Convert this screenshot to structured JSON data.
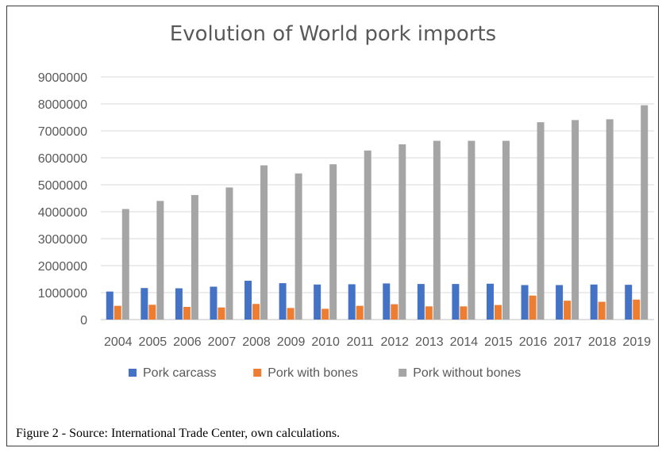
{
  "chart_data": {
    "type": "bar",
    "title": "Evolution of World pork imports",
    "xlabel": "",
    "ylabel": "",
    "ylim": [
      0,
      9000000
    ],
    "yticks": [
      0,
      1000000,
      2000000,
      3000000,
      4000000,
      5000000,
      6000000,
      7000000,
      8000000,
      9000000
    ],
    "grid": true,
    "legend_position": "bottom",
    "categories": [
      "2004",
      "2005",
      "2006",
      "2007",
      "2008",
      "2009",
      "2010",
      "2011",
      "2012",
      "2013",
      "2014",
      "2015",
      "2016",
      "2017",
      "2018",
      "2019"
    ],
    "series": [
      {
        "name": "Pork carcass",
        "color": "#4472C4",
        "values": [
          1040000,
          1170000,
          1160000,
          1220000,
          1440000,
          1350000,
          1300000,
          1310000,
          1340000,
          1320000,
          1320000,
          1330000,
          1280000,
          1280000,
          1300000,
          1290000
        ]
      },
      {
        "name": "Pork with bones",
        "color": "#ED7D31",
        "values": [
          510000,
          550000,
          470000,
          450000,
          580000,
          430000,
          400000,
          510000,
          570000,
          490000,
          490000,
          540000,
          890000,
          700000,
          660000,
          740000
        ]
      },
      {
        "name": "Pork without bones",
        "color": "#A5A5A5",
        "values": [
          4100000,
          4400000,
          4620000,
          4900000,
          5720000,
          5420000,
          5760000,
          6270000,
          6500000,
          6630000,
          6630000,
          6630000,
          7320000,
          7400000,
          7430000,
          7950000
        ]
      }
    ]
  },
  "caption": "Figure 2 - Source: International Trade Center, own calculations."
}
